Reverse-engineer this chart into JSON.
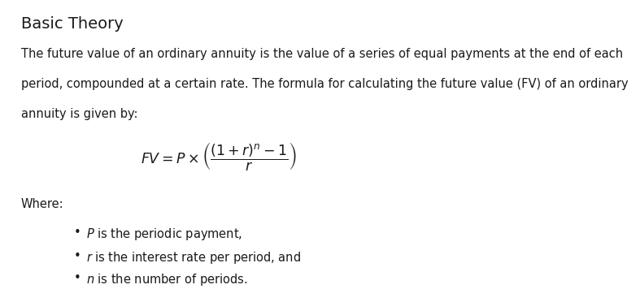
{
  "title": "Basic Theory",
  "body_line1": "The future value of an ordinary annuity is the value of a series of equal payments at the end of each",
  "body_line2": "period, compounded at a certain rate. The formula for calculating the future value (FV) of an ordinary",
  "body_line3": "annuity is given by:",
  "where_label": "Where:",
  "bullet1_italic": "$\\mathit{P}$",
  "bullet1_rest": " is the periodic payment,",
  "bullet2_italic": "$\\mathit{r}$",
  "bullet2_rest": " is the interest rate per period, and",
  "bullet3_italic": "$\\mathit{n}$",
  "bullet3_rest": " is the number of periods.",
  "bg_color": "#ffffff",
  "text_color": "#1a1a1a",
  "title_fontsize": 14,
  "body_fontsize": 10.5,
  "formula_fontsize": 12.5
}
